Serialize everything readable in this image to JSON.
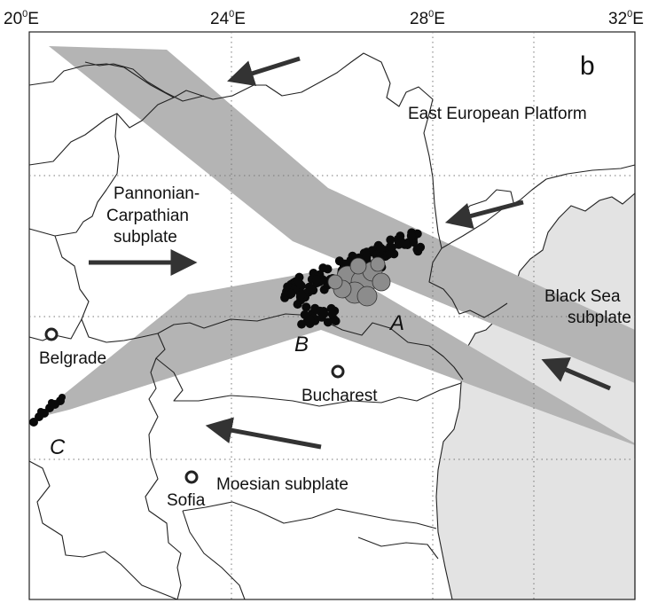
{
  "panel_letter": "b",
  "longitude_ticks": [
    {
      "deg": "20",
      "sup": "0",
      "hemi": "E"
    },
    {
      "deg": "24",
      "sup": "0",
      "hemi": "E"
    },
    {
      "deg": "28",
      "sup": "0",
      "hemi": "E"
    },
    {
      "deg": "32",
      "sup": "0",
      "hemi": "E"
    }
  ],
  "region_labels": {
    "east_european_platform": "East European Platform",
    "pannonian_line1": "Pannonian-",
    "pannonian_line2": "Carpathian",
    "pannonian_line3": "subplate",
    "black_sea_line1": "Black Sea",
    "black_sea_line2": "subplate",
    "moesian": "Moesian subplate"
  },
  "cities": [
    {
      "name": "Belgrade"
    },
    {
      "name": "Bucharest"
    },
    {
      "name": "Sofia"
    }
  ],
  "cluster_labels": {
    "a": "A",
    "b": "B",
    "c": "C"
  },
  "colors": {
    "band_gray": "#b4b4b4",
    "black_sea_fill": "#e3e3e3",
    "arrow_color": "#333333",
    "event_dots": "#0a0a0a",
    "large_events": "#8c8c8c"
  }
}
